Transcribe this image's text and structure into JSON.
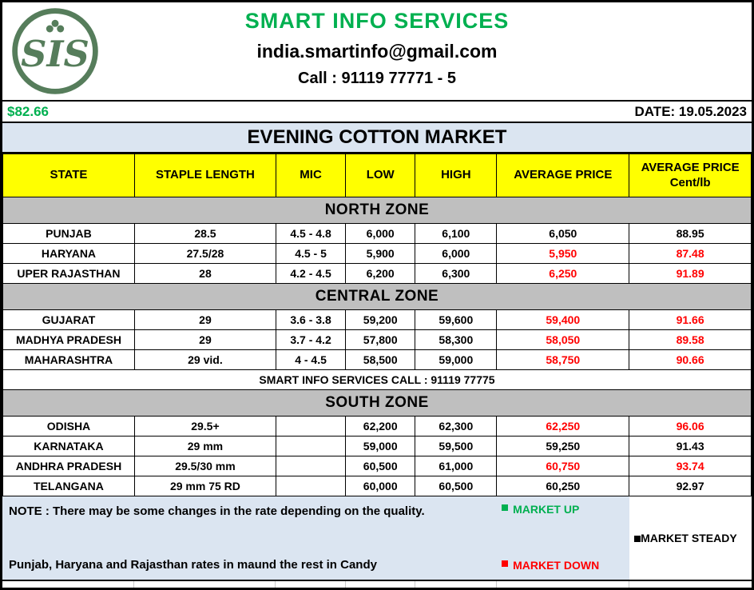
{
  "colors": {
    "green": "#00b050",
    "red": "#ff0000",
    "steady": "#000000",
    "banner_bg": "#dbe5f1",
    "zone_bg": "#bfbfbf",
    "column_header_bg": "#ffff00"
  },
  "header": {
    "logo_text": "SIS",
    "title": "SMART INFO SERVICES",
    "email": "india.smartinfo@gmail.com",
    "phone": "Call : 91119 77771 - 5"
  },
  "ticker": {
    "price": "$82.66",
    "date": "DATE: 19.05.2023"
  },
  "banner": "EVENING COTTON MARKET",
  "columns": [
    {
      "label": "STATE",
      "sub": ""
    },
    {
      "label": "STAPLE LENGTH",
      "sub": ""
    },
    {
      "label": "MIC",
      "sub": ""
    },
    {
      "label": "LOW",
      "sub": ""
    },
    {
      "label": "HIGH",
      "sub": ""
    },
    {
      "label": "AVERAGE PRICE",
      "sub": ""
    },
    {
      "label": "AVERAGE PRICE",
      "sub": "Cent/lb"
    }
  ],
  "zones": [
    {
      "name": "NORTH ZONE",
      "rows": [
        {
          "state": "PUNJAB",
          "staple": "28.5",
          "mic": "4.5 - 4.8",
          "low": "6,000",
          "high": "6,100",
          "avg": "6,050",
          "avg_color": "black",
          "cent": "88.95",
          "cent_color": "black"
        },
        {
          "state": "HARYANA",
          "staple": "27.5/28",
          "mic": "4.5 - 5",
          "low": "5,900",
          "high": "6,000",
          "avg": "5,950",
          "avg_color": "red",
          "cent": "87.48",
          "cent_color": "red"
        },
        {
          "state": "UPER RAJASTHAN",
          "staple": "28",
          "mic": "4.2 - 4.5",
          "low": "6,200",
          "high": "6,300",
          "avg": "6,250",
          "avg_color": "red",
          "cent": "91.89",
          "cent_color": "red"
        }
      ]
    },
    {
      "name": "CENTRAL ZONE",
      "rows": [
        {
          "state": "GUJARAT",
          "staple": "29",
          "mic": "3.6 - 3.8",
          "low": "59,200",
          "high": "59,600",
          "avg": "59,400",
          "avg_color": "red",
          "cent": "91.66",
          "cent_color": "red"
        },
        {
          "state": "MADHYA PRADESH",
          "staple": "29",
          "mic": "3.7 - 4.2",
          "low": "57,800",
          "high": "58,300",
          "avg": "58,050",
          "avg_color": "red",
          "cent": "89.58",
          "cent_color": "red"
        },
        {
          "state": "MAHARASHTRA",
          "staple": "29 vid.",
          "mic": "4 - 4.5",
          "low": "58,500",
          "high": "59,000",
          "avg": "58,750",
          "avg_color": "red",
          "cent": "90.66",
          "cent_color": "red"
        }
      ],
      "after_note": "SMART INFO SERVICES CALL : 91119 77775"
    },
    {
      "name": "SOUTH ZONE",
      "rows": [
        {
          "state": "ODISHA",
          "staple": "29.5+",
          "mic": "",
          "low": "62,200",
          "high": "62,300",
          "avg": "62,250",
          "avg_color": "red",
          "cent": "96.06",
          "cent_color": "red"
        },
        {
          "state": "KARNATAKA",
          "staple": "29 mm",
          "mic": "",
          "low": "59,000",
          "high": "59,500",
          "avg": "59,250",
          "avg_color": "black",
          "cent": "91.43",
          "cent_color": "black"
        },
        {
          "state": "ANDHRA PRADESH",
          "staple": "29.5/30 mm",
          "mic": "",
          "low": "60,500",
          "high": "61,000",
          "avg": "60,750",
          "avg_color": "red",
          "cent": "93.74",
          "cent_color": "red"
        },
        {
          "state": "TELANGANA",
          "staple": "29 mm  75 RD",
          "mic": "",
          "low": "60,000",
          "high": "60,500",
          "avg": "60,250",
          "avg_color": "black",
          "cent": "92.97",
          "cent_color": "black"
        }
      ]
    }
  ],
  "footer": {
    "note1": "NOTE : There may be some changes in the rate depending on the quality.",
    "note2": "Punjab, Haryana and Rajasthan rates in maund the rest in Candy",
    "legend": [
      {
        "label": "MARKET UP",
        "color": "#00b050"
      },
      {
        "label": "MARKET STEADY",
        "color": "#000000"
      },
      {
        "label": "MARKET  DOWN",
        "color": "#ff0000"
      }
    ]
  }
}
